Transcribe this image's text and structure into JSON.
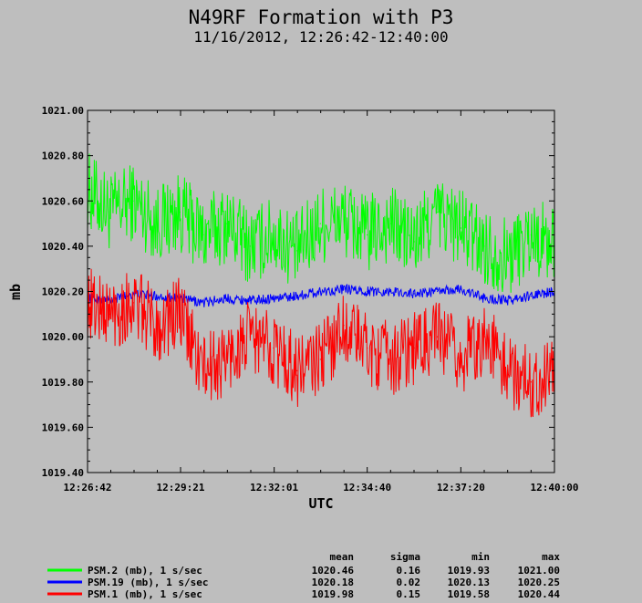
{
  "chart_data": {
    "type": "line",
    "title": "N49RF Formation with P3",
    "subtitle": "11/16/2012, 12:26:42-12:40:00",
    "xlabel": "UTC",
    "ylabel": "mb",
    "x_range": [
      "12:26:42",
      "12:40:00"
    ],
    "ylim": [
      1019.4,
      1021.0
    ],
    "x_ticks": [
      "12:26:42",
      "12:29:21",
      "12:32:01",
      "12:34:40",
      "12:37:20",
      "12:40:00"
    ],
    "y_ticks": [
      "1019.40",
      "1019.60",
      "1019.80",
      "1020.00",
      "1020.20",
      "1020.40",
      "1020.60",
      "1020.80",
      "1021.00"
    ],
    "stats_headers": [
      "mean",
      "sigma",
      "min",
      "max"
    ],
    "series": [
      {
        "name": "PSM.2 (mb), 1 s/sec",
        "color": "#00ff00",
        "stats": [
          "1020.46",
          "0.16",
          "1019.93",
          "1021.00"
        ],
        "x": [
          "12:26:42",
          "12:27:20",
          "12:28:00",
          "12:28:40",
          "12:29:20",
          "12:30:00",
          "12:30:40",
          "12:31:20",
          "12:32:00",
          "12:32:40",
          "12:33:20",
          "12:34:00",
          "12:34:40",
          "12:35:20",
          "12:36:00",
          "12:36:40",
          "12:37:20",
          "12:38:00",
          "12:38:40",
          "12:39:20",
          "12:40:00"
        ],
        "values": [
          1020.65,
          1020.55,
          1020.6,
          1020.5,
          1020.55,
          1020.45,
          1020.5,
          1020.4,
          1020.45,
          1020.38,
          1020.5,
          1020.52,
          1020.45,
          1020.5,
          1020.42,
          1020.55,
          1020.48,
          1020.4,
          1020.35,
          1020.45,
          1020.4
        ]
      },
      {
        "name": "PSM.19 (mb), 1 s/sec",
        "color": "#0000ff",
        "stats": [
          "1020.18",
          "0.02",
          "1020.13",
          "1020.25"
        ],
        "x": [
          "12:26:42",
          "12:27:20",
          "12:28:00",
          "12:28:40",
          "12:29:20",
          "12:30:00",
          "12:30:40",
          "12:31:20",
          "12:32:00",
          "12:32:40",
          "12:33:20",
          "12:34:00",
          "12:34:40",
          "12:35:20",
          "12:36:00",
          "12:36:40",
          "12:37:20",
          "12:38:00",
          "12:38:40",
          "12:39:20",
          "12:40:00"
        ],
        "values": [
          1020.17,
          1020.16,
          1020.19,
          1020.18,
          1020.17,
          1020.15,
          1020.17,
          1020.16,
          1020.17,
          1020.18,
          1020.2,
          1020.21,
          1020.2,
          1020.2,
          1020.19,
          1020.2,
          1020.21,
          1020.17,
          1020.16,
          1020.18,
          1020.2
        ]
      },
      {
        "name": "PSM.1 (mb), 1 s/sec",
        "color": "#ff0000",
        "stats": [
          "1019.98",
          "0.15",
          "1019.58",
          "1020.44"
        ],
        "x": [
          "12:26:42",
          "12:27:20",
          "12:28:00",
          "12:28:40",
          "12:29:20",
          "12:30:00",
          "12:30:40",
          "12:31:20",
          "12:32:00",
          "12:32:40",
          "12:33:20",
          "12:34:00",
          "12:34:40",
          "12:35:20",
          "12:36:00",
          "12:36:40",
          "12:37:20",
          "12:38:00",
          "12:38:40",
          "12:39:20",
          "12:40:00"
        ],
        "values": [
          1020.15,
          1020.1,
          1020.15,
          1020.05,
          1020.1,
          1019.85,
          1019.9,
          1020.0,
          1019.95,
          1019.85,
          1019.9,
          1020.05,
          1019.95,
          1019.9,
          1019.95,
          1020.0,
          1019.9,
          1020.0,
          1019.85,
          1019.8,
          1019.85
        ]
      }
    ]
  }
}
